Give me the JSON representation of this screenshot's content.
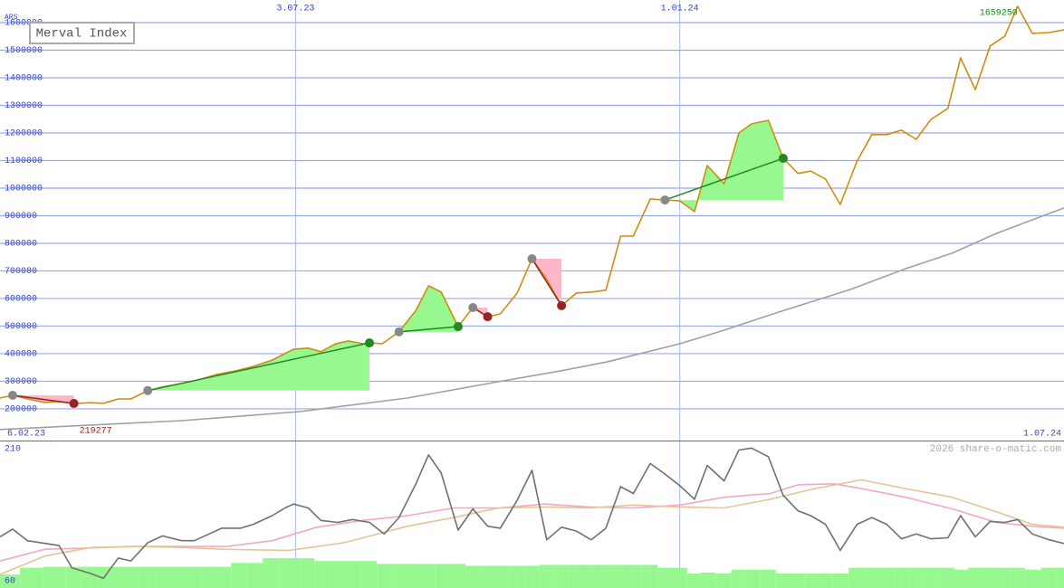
{
  "chart_data": [
    {
      "type": "line",
      "title": "Merval Index",
      "unit": "ARS",
      "xlim": [
        7,
        511
      ],
      "xticks": [
        {
          "value": 147,
          "label": "3.07.23"
        },
        {
          "value": 329,
          "label": "1.01.24"
        }
      ],
      "start_label": "6.02.23",
      "end_label": "1.07.24",
      "ylim": [
        85000,
        1682000
      ],
      "yticks": [
        200000,
        300000,
        400000,
        500000,
        600000,
        700000,
        800000,
        900000,
        1000000,
        1100000,
        1200000,
        1300000,
        1400000,
        1500000,
        1600000
      ],
      "grid": true,
      "series": [
        {
          "color": "#d08c10",
          "x": [
            7,
            13,
            20,
            28,
            35,
            42,
            50,
            56,
            63,
            69,
            77,
            84,
            93,
            101,
            110,
            119,
            127,
            136,
            146,
            153,
            159,
            166,
            172,
            179,
            182,
            188,
            196,
            204,
            210,
            216,
            224,
            231,
            238,
            244,
            252,
            259,
            266,
            273,
            280,
            287,
            294,
            301,
            307,
            315,
            322,
            329,
            336,
            342,
            350,
            357,
            363,
            371,
            378,
            385,
            391,
            398,
            405,
            413,
            420,
            427,
            434,
            441,
            448,
            456,
            462,
            469,
            476,
            483,
            489,
            496,
            504,
            511
          ],
          "values": [
            239000,
            249000,
            236000,
            223000,
            226000,
            219277,
            222000,
            220000,
            236000,
            236000,
            266000,
            279000,
            292000,
            305000,
            325000,
            338000,
            354000,
            377000,
            416000,
            420000,
            407000,
            436000,
            446000,
            436000,
            439000,
            436000,
            479000,
            557000,
            646000,
            623000,
            498000,
            567000,
            534000,
            544000,
            620000,
            744000,
            669000,
            574000,
            620000,
            623000,
            630000,
            826000,
            826000,
            961000,
            957000,
            954000,
            915000,
            1082000,
            1016000,
            1200000,
            1233000,
            1246000,
            1108000,
            1053000,
            1062000,
            1033000,
            941000,
            1098000,
            1194000,
            1194000,
            1210000,
            1177000,
            1249000,
            1289000,
            1472000,
            1357000,
            1515000,
            1551000,
            1659250,
            1561000,
            1564000,
            1574000
          ]
        },
        {
          "color": "#a0a0a0",
          "x": [
            7,
            93,
            149,
            200,
            243,
            273,
            295,
            329,
            350,
            376,
            410,
            436,
            458,
            479,
            511
          ],
          "values": [
            125000,
            157000,
            190000,
            239000,
            298000,
            338000,
            371000,
            436000,
            485000,
            551000,
            633000,
            708000,
            764000,
            836000,
            928000
          ]
        }
      ],
      "trades": [
        {
          "x": [
            13,
            42
          ],
          "values": [
            249000,
            219277
          ],
          "color": "#992222",
          "fill": "#ffb6c8"
        },
        {
          "x": [
            77,
            182
          ],
          "values": [
            266000,
            439000
          ],
          "color": "#228822",
          "fill": "#98f890"
        },
        {
          "x": [
            196,
            224
          ],
          "values": [
            479000,
            498000
          ],
          "color": "#228822",
          "fill": "#98f890"
        },
        {
          "x": [
            231,
            238
          ],
          "values": [
            567000,
            534000
          ],
          "color": "#992222",
          "fill": "#ffb6c8"
        },
        {
          "x": [
            259,
            273
          ],
          "values": [
            744000,
            574000
          ],
          "color": "#992222",
          "fill": "#ffb6c8"
        },
        {
          "x": [
            322,
            378
          ],
          "values": [
            957000,
            1108000
          ],
          "color": "#228822",
          "fill": "#98f890"
        }
      ],
      "max_label": 1659250,
      "min_label": 219277,
      "credit": "2026 share-o-matic.com"
    },
    {
      "type": "line",
      "xlim": [
        7,
        511
      ],
      "ylim": [
        60,
        210
      ],
      "yticks": [
        60,
        210
      ],
      "bars": {
        "color": "#98f890",
        "x": [
          7,
          13,
          20,
          35,
          41,
          50,
          56,
          63,
          69,
          77,
          84,
          93,
          99,
          106,
          112,
          121,
          127,
          136,
          142,
          146,
          153,
          159,
          167,
          174,
          182,
          189,
          196,
          204,
          210,
          216,
          224,
          231,
          238,
          244,
          252,
          259,
          266,
          273,
          280,
          287,
          294,
          301,
          307,
          315,
          322,
          329,
          336,
          342,
          350,
          357,
          363,
          371,
          378,
          385,
          391,
          398,
          405,
          413,
          420,
          427,
          434,
          441,
          448,
          456,
          462,
          469,
          476,
          483,
          489,
          496,
          504,
          511
        ],
        "values": [
          74,
          74,
          81,
          82,
          82,
          82,
          82,
          82,
          82,
          82,
          82,
          82,
          82,
          82,
          82,
          86,
          86,
          91,
          91,
          91,
          91,
          88,
          88,
          88,
          88,
          85,
          85,
          85,
          85,
          85,
          85,
          83,
          83,
          83,
          83,
          83,
          84,
          84,
          84,
          84,
          84,
          84,
          84,
          84,
          81,
          81,
          75,
          76,
          75,
          79,
          79,
          79,
          75,
          75,
          75,
          75,
          75,
          81,
          81,
          81,
          81,
          81,
          81,
          81,
          79,
          81,
          81,
          81,
          81,
          79,
          81,
          81
        ]
      },
      "series": [
        {
          "color": "#f4a8c0",
          "x": [
            7,
            28,
            71,
            114,
            136,
            157,
            179,
            200,
            222,
            243,
            265,
            286,
            307,
            329,
            350,
            372,
            385,
            402,
            415,
            436,
            458,
            479,
            496,
            511
          ],
          "values": [
            88,
            100,
            103,
            103,
            109,
            123,
            130,
            135,
            143,
            143,
            147,
            144,
            143,
            146,
            154,
            158,
            167,
            168,
            163,
            154,
            142,
            128,
            124,
            122
          ]
        },
        {
          "color": "#e4c494",
          "x": [
            7,
            28,
            50,
            71,
            93,
            114,
            144,
            170,
            200,
            222,
            243,
            265,
            286,
            307,
            329,
            350,
            372,
            393,
            415,
            436,
            458,
            479,
            496,
            511
          ],
          "values": [
            74,
            93,
            102,
            103,
            102,
            100,
            99,
            107,
            124,
            133,
            143,
            144,
            143,
            146,
            144,
            143,
            152,
            163,
            172,
            163,
            154,
            139,
            126,
            123
          ]
        },
        {
          "color": "#707070",
          "x": [
            7,
            13,
            20,
            35,
            41,
            50,
            56,
            63,
            69,
            77,
            84,
            93,
            99,
            106,
            112,
            121,
            127,
            136,
            142,
            146,
            153,
            159,
            167,
            174,
            182,
            189,
            196,
            204,
            210,
            216,
            224,
            231,
            238,
            244,
            252,
            259,
            266,
            273,
            280,
            287,
            294,
            301,
            307,
            315,
            322,
            329,
            336,
            342,
            350,
            357,
            363,
            371,
            378,
            385,
            391,
            398,
            405,
            413,
            420,
            427,
            434,
            441,
            448,
            456,
            462,
            469,
            476,
            483,
            489,
            496,
            504,
            511
          ],
          "values": [
            113,
            121,
            109,
            104,
            81,
            75,
            70,
            91,
            88,
            107,
            114,
            109,
            109,
            116,
            122,
            122,
            126,
            135,
            143,
            147,
            143,
            130,
            128,
            131,
            128,
            116,
            133,
            168,
            198,
            179,
            120,
            142,
            124,
            122,
            151,
            182,
            110,
            123,
            119,
            110,
            122,
            165,
            158,
            189,
            178,
            166,
            152,
            187,
            171,
            203,
            205,
            196,
            156,
            140,
            135,
            126,
            99,
            126,
            133,
            126,
            111,
            116,
            111,
            112,
            135,
            113,
            129,
            128,
            131,
            116,
            110,
            106
          ]
        }
      ]
    }
  ]
}
